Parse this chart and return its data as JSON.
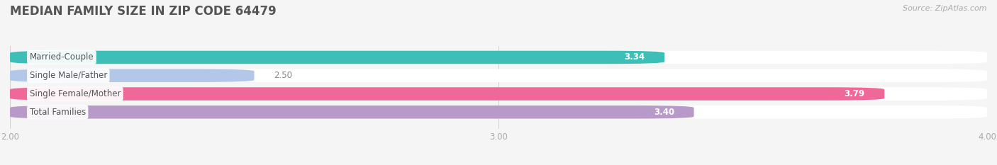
{
  "title": "MEDIAN FAMILY SIZE IN ZIP CODE 64479",
  "source": "Source: ZipAtlas.com",
  "categories": [
    "Married-Couple",
    "Single Male/Father",
    "Single Female/Mother",
    "Total Families"
  ],
  "values": [
    3.34,
    2.5,
    3.79,
    3.4
  ],
  "colors": [
    "#3dbfb8",
    "#b3c8e8",
    "#f06898",
    "#b89ac8"
  ],
  "value_label_colors": [
    "white",
    "#888888",
    "white",
    "white"
  ],
  "xlim": [
    2.0,
    4.0
  ],
  "xticks": [
    2.0,
    3.0,
    4.0
  ],
  "bar_height": 0.72,
  "bar_gap": 0.28,
  "background_color": "#f5f5f5",
  "bar_bg_color": "#ececec",
  "title_fontsize": 12,
  "label_fontsize": 8.5,
  "value_fontsize": 8.5,
  "source_fontsize": 8,
  "tick_fontsize": 8.5
}
